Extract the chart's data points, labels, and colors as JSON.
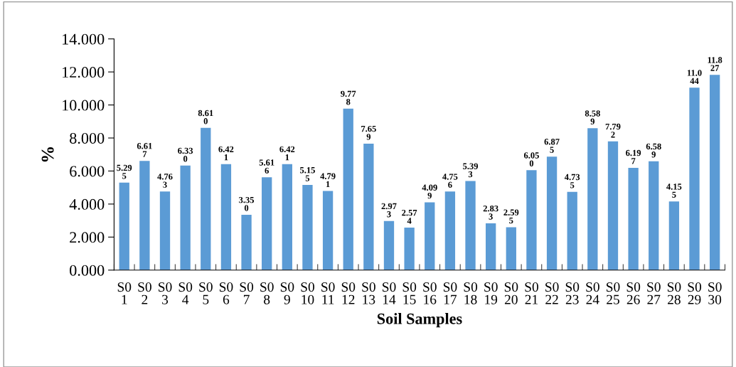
{
  "chart_data": {
    "type": "bar",
    "xlabel": "Soil Samples",
    "ylabel": "%",
    "categories": [
      "S0\n1",
      "S0\n2",
      "S0\n3",
      "S0\n4",
      "S0\n5",
      "S0\n6",
      "S0\n7",
      "S0\n8",
      "S0\n9",
      "S0\n10",
      "S0\n11",
      "S0\n12",
      "S0\n13",
      "S0\n14",
      "S0\n15",
      "S0\n16",
      "S0\n17",
      "S0\n18",
      "S0\n19",
      "S0\n20",
      "S0\n21",
      "S0\n22",
      "S0\n23",
      "S0\n24",
      "S0\n25",
      "S0\n26",
      "S0\n27",
      "S0\n28",
      "S0\n29",
      "S0\n30"
    ],
    "values": [
      5.295,
      6.617,
      4.763,
      6.33,
      8.61,
      6.421,
      3.35,
      5.616,
      6.421,
      5.155,
      4.791,
      9.778,
      7.659,
      2.973,
      2.574,
      4.099,
      4.756,
      5.393,
      2.833,
      2.595,
      6.05,
      6.875,
      4.735,
      8.589,
      7.792,
      6.197,
      6.589,
      4.155,
      11.044,
      11.827
    ],
    "value_labels": [
      "5.295",
      "6.617",
      "4.763",
      "6.330",
      "8.610",
      "6.421",
      "3.350",
      "5.616",
      "6.421",
      "5.155",
      "4.791",
      "9.778",
      "7.659",
      "2.973",
      "2.574",
      "4.099",
      "4.756",
      "5.393",
      "2.833",
      "2.595",
      "6.050",
      "6.875",
      "4.735",
      "8.589",
      "7.792",
      "6.197",
      "6.589",
      "4.155",
      "11.044",
      "11.827"
    ],
    "color": "#5b9bd5",
    "ylim": [
      0,
      14
    ],
    "yticks": [
      {
        "value": 0,
        "label": "0.000"
      },
      {
        "value": 2,
        "label": "2.000"
      },
      {
        "value": 4,
        "label": "4.000"
      },
      {
        "value": 6,
        "label": "6.000"
      },
      {
        "value": 8,
        "label": "8.000"
      },
      {
        "value": 10,
        "label": "10.000"
      },
      {
        "value": 12,
        "label": "12.000"
      },
      {
        "value": 14,
        "label": "14.000"
      }
    ],
    "grid": false,
    "legend": false
  }
}
